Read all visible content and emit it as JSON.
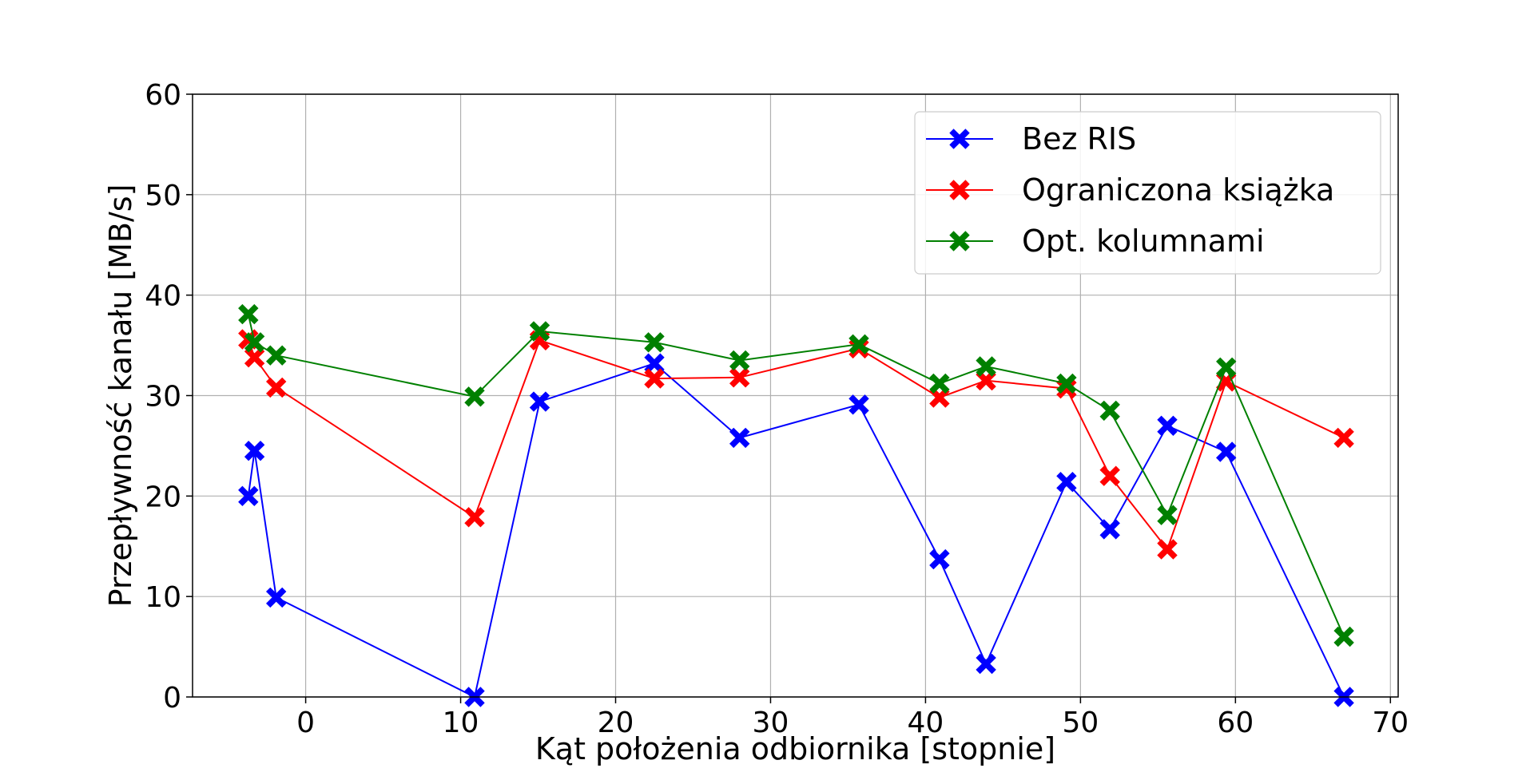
{
  "chart_data": {
    "type": "line",
    "title": "",
    "xlabel": "Kąt położenia odbiornika [stopnie]",
    "ylabel": "Przepływność kanału [MB/s]",
    "xlim": [
      -7.3,
      70.5
    ],
    "ylim": [
      0,
      60
    ],
    "xticks": [
      0,
      10,
      20,
      30,
      40,
      50,
      60,
      70
    ],
    "yticks": [
      0,
      10,
      20,
      30,
      40,
      50,
      60
    ],
    "grid": true,
    "legend_position": "top-right",
    "marker": "X",
    "series": [
      {
        "name": "Bez RIS",
        "color": "#0000ff",
        "x": [
          -3.7,
          -3.3,
          -1.9,
          10.9,
          15.1,
          22.5,
          28.0,
          35.7,
          40.9,
          43.9,
          49.1,
          51.9,
          55.6,
          59.4,
          67.0
        ],
        "y": [
          20.0,
          24.5,
          9.9,
          0.0,
          29.4,
          33.2,
          25.8,
          29.1,
          13.7,
          3.3,
          21.4,
          16.7,
          27.0,
          24.4,
          0.0
        ]
      },
      {
        "name": "Ograniczona książka",
        "color": "#ff0000",
        "x": [
          -3.7,
          -3.3,
          -1.9,
          10.9,
          15.1,
          22.5,
          28.0,
          35.7,
          40.9,
          43.9,
          49.1,
          51.9,
          55.6,
          59.4,
          67.0
        ],
        "y": [
          35.6,
          33.8,
          30.8,
          17.9,
          35.5,
          31.7,
          31.8,
          34.7,
          29.8,
          31.5,
          30.7,
          22.0,
          14.7,
          31.4,
          25.8
        ]
      },
      {
        "name": "Opt. kolumnami",
        "color": "#008000",
        "x": [
          -3.7,
          -3.3,
          -1.9,
          10.9,
          15.1,
          22.5,
          28.0,
          35.7,
          40.9,
          43.9,
          49.1,
          51.9,
          55.6,
          59.4,
          67.0
        ],
        "y": [
          38.1,
          35.3,
          34.0,
          29.9,
          36.4,
          35.3,
          33.5,
          35.1,
          31.2,
          32.9,
          31.2,
          28.5,
          18.1,
          32.8,
          6.0
        ]
      }
    ]
  }
}
